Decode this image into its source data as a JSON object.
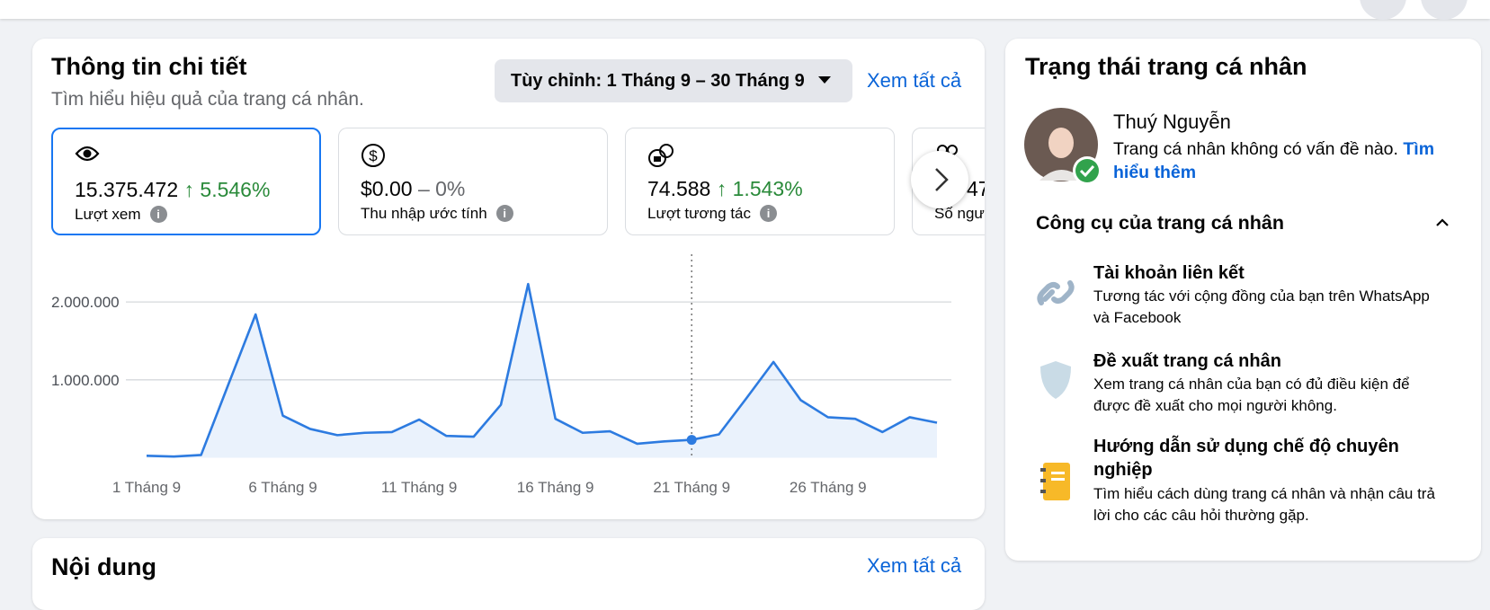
{
  "insights": {
    "title": "Thông tin chi tiết",
    "subtitle": "Tìm hiểu hiệu quả của trang cá nhân.",
    "date_filter": "Tùy chỉnh: 1 Tháng 9 – 30 Tháng 9",
    "see_all": "Xem tất cả",
    "stats": [
      {
        "value": "15.375.472",
        "change": "5.546%",
        "label": "Lượt xem"
      },
      {
        "value": "$0.00",
        "change": "– 0%",
        "label": "Thu nhập ước tính"
      },
      {
        "value": "74.588",
        "change": "1.543%",
        "label": "Lượt tương tác"
      },
      {
        "value": "47",
        "label": "Số ngư"
      }
    ]
  },
  "chart_data": {
    "type": "line",
    "categories": [
      "1 Tháng 9",
      null,
      null,
      null,
      null,
      "6 Tháng 9",
      null,
      null,
      null,
      null,
      "11 Tháng 9",
      null,
      null,
      null,
      null,
      "16 Tháng 9",
      null,
      null,
      null,
      null,
      "21 Tháng 9",
      null,
      null,
      null,
      null,
      "26 Tháng 9",
      null,
      null,
      null,
      null
    ],
    "series": [
      {
        "name": "Lượt xem",
        "color": "#2d7be0",
        "values": [
          25000,
          15000,
          35000,
          940000,
          1840000,
          540000,
          370000,
          290000,
          320000,
          330000,
          490000,
          280000,
          270000,
          680000,
          2230000,
          500000,
          320000,
          340000,
          180000,
          210000,
          230000,
          300000,
          760000,
          1230000,
          740000,
          520000,
          500000,
          330000,
          520000,
          450000
        ]
      }
    ],
    "ylim": [
      0,
      2500000
    ],
    "yticks": [
      {
        "value": 1000000,
        "label": "1.000.000"
      },
      {
        "value": 2000000,
        "label": "2.000.000"
      }
    ],
    "grid": true
  },
  "status": {
    "title": "Trạng thái trang cá nhân",
    "name": "Thuý Nguyễn",
    "message": "Trang cá nhân không có vấn đề nào.",
    "link": "Tìm hiểu thêm",
    "tools_title": "Công cụ của trang cá nhân",
    "tools": [
      {
        "title": "Tài khoản liên kết",
        "description": "Tương tác với cộng đồng của bạn trên WhatsApp và Facebook"
      },
      {
        "title": "Đề xuất trang cá nhân",
        "description": "Xem trang cá nhân của bạn có đủ điều kiện để được đề xuất cho mọi người không."
      },
      {
        "title": "Hướng dẫn sử dụng chế độ chuyên nghiệp",
        "description": "Tìm hiểu cách dùng trang cá nhân và nhận câu trả lời cho các câu hỏi thường gặp."
      }
    ]
  },
  "content": {
    "title": "Nội dung",
    "see_all": "Xem tất cả"
  }
}
